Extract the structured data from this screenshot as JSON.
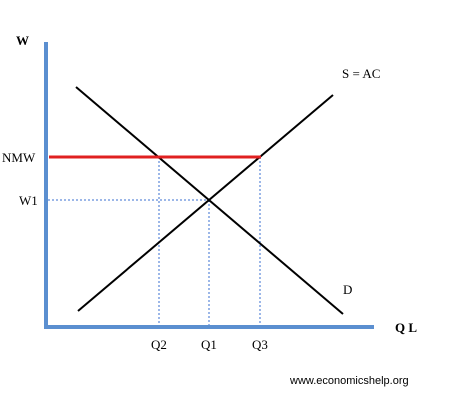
{
  "diagram": {
    "y_axis_label": "W",
    "x_axis_label": "Q L",
    "supply_label": "S = AC",
    "demand_label": "D",
    "wage_levels": {
      "nmw": "NMW",
      "w1": "W1"
    },
    "quantity_levels": {
      "q1": "Q1",
      "q2": "Q2",
      "q3": "Q3"
    },
    "colors": {
      "axes": "#5b8fd0",
      "curves": "#000000",
      "minimum_wage_line": "#e02020",
      "guide_lines": "#3a6fd0"
    }
  },
  "source": "www.economicshelp.org"
}
